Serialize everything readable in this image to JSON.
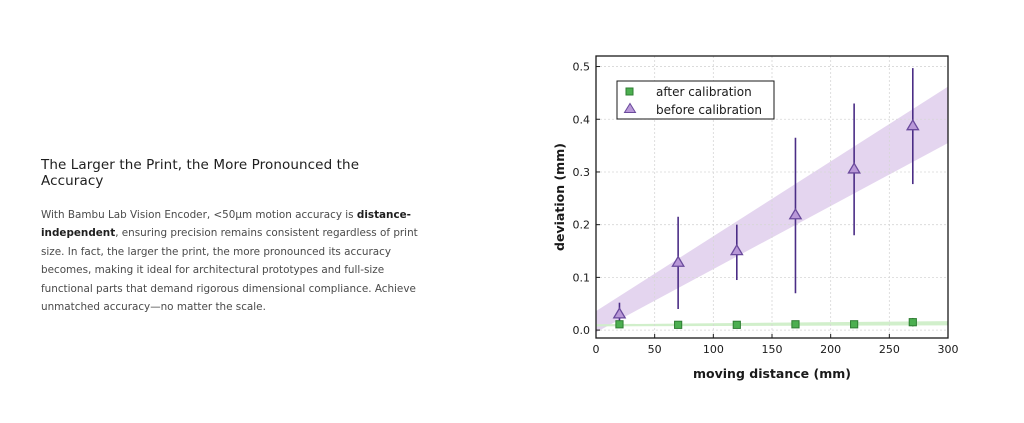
{
  "section": {
    "title": "The Larger the Print, the More Pronounced the Accuracy",
    "body_before": "With Bambu Lab Vision Encoder, <50μm motion accuracy is ",
    "body_bold": "distance-independent",
    "body_after": ", ensuring precision remains consistent regardless of print size. In fact, the larger the print, the more pronounced its accuracy becomes, making it ideal for architectural prototypes and full-size functional parts that demand rigorous dimensional compliance. Achieve unmatched accuracy—no matter the scale."
  },
  "chart_data": {
    "type": "scatter",
    "title": "",
    "xlabel": "moving distance (mm)",
    "ylabel": "deviation (mm)",
    "xlim": [
      0,
      300
    ],
    "ylim": [
      -0.015,
      0.52
    ],
    "xticks": [
      0,
      50,
      100,
      150,
      200,
      250,
      300
    ],
    "yticks": [
      0.0,
      0.1,
      0.2,
      0.3,
      0.4,
      0.5
    ],
    "ytick_labels": [
      "0.0",
      "0.1",
      "0.2",
      "0.3",
      "0.4",
      "0.5"
    ],
    "grid": true,
    "legend_position": "top-left",
    "series": [
      {
        "name": "after calibration",
        "marker": "square",
        "color": "#4caf50",
        "edge_color": "#2e7d32",
        "x": [
          20,
          70,
          120,
          170,
          220,
          270
        ],
        "y": [
          0.011,
          0.01,
          0.01,
          0.011,
          0.011,
          0.015
        ],
        "err_low": [
          0.005,
          0.006,
          0.003,
          0.005,
          0.004,
          0.008
        ],
        "err_high": [
          0.005,
          0.006,
          0.003,
          0.005,
          0.004,
          0.008
        ],
        "band": {
          "color": "#cfeec8",
          "x": [
            0,
            300
          ],
          "low": [
            0.007,
            0.009
          ],
          "high": [
            0.011,
            0.017
          ]
        }
      },
      {
        "name": "before calibration",
        "marker": "triangle",
        "color": "#b998d8",
        "edge_color": "#6a4a9c",
        "x": [
          20,
          70,
          120,
          170,
          220,
          270
        ],
        "y": [
          0.03,
          0.128,
          0.15,
          0.218,
          0.305,
          0.387
        ],
        "err_low": [
          0.018,
          0.088,
          0.055,
          0.148,
          0.125,
          0.11
        ],
        "err_high": [
          0.022,
          0.087,
          0.05,
          0.147,
          0.125,
          0.11
        ],
        "band": {
          "color": "#e3d3ee",
          "x": [
            0,
            300
          ],
          "low": [
            -0.004,
            0.355
          ],
          "high": [
            0.036,
            0.462
          ]
        }
      }
    ]
  }
}
